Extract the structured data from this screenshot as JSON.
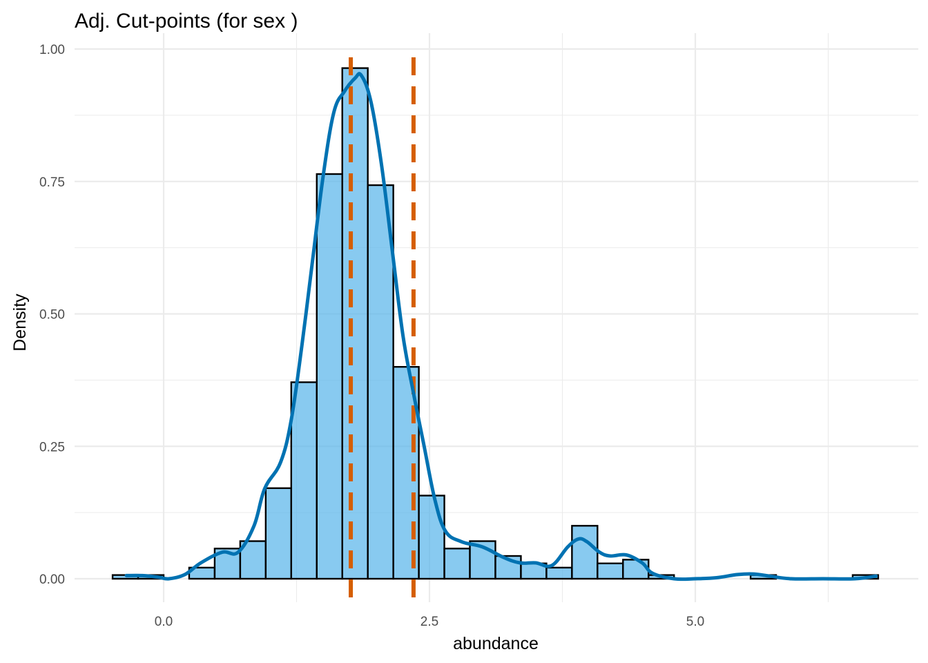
{
  "chart_data": {
    "type": "bar",
    "title": "Adj. Cut-points (for sex )",
    "xlabel": "abundance",
    "ylabel": "Density",
    "xlim": [
      -0.85,
      7.0
    ],
    "ylim": [
      -0.04,
      1.03
    ],
    "x_ticks": [
      {
        "value": 0.0,
        "label": "0.0"
      },
      {
        "value": 2.5,
        "label": "2.5"
      },
      {
        "value": 5.0,
        "label": "5.0"
      }
    ],
    "y_ticks": [
      {
        "value": 0.0,
        "label": "0.00"
      },
      {
        "value": 0.25,
        "label": "0.25"
      },
      {
        "value": 0.5,
        "label": "0.50"
      },
      {
        "value": 0.75,
        "label": "0.75"
      },
      {
        "value": 1.0,
        "label": "1.00"
      }
    ],
    "grid": true,
    "colors": {
      "histogram_fill": "#56B4E9",
      "histogram_edge": "#000000",
      "density_line": "#0072B2",
      "cut_line": "#D55E00",
      "grid": "#ebebeb"
    },
    "histogram": {
      "bin_width": 0.24,
      "bins": [
        {
          "x0": -0.48,
          "x1": -0.24,
          "density": 0.007
        },
        {
          "x0": -0.24,
          "x1": 0.0,
          "density": 0.007
        },
        {
          "x0": 0.0,
          "x1": 0.24,
          "density": 0.0
        },
        {
          "x0": 0.24,
          "x1": 0.48,
          "density": 0.021
        },
        {
          "x0": 0.48,
          "x1": 0.72,
          "density": 0.057
        },
        {
          "x0": 0.72,
          "x1": 0.96,
          "density": 0.071
        },
        {
          "x0": 0.96,
          "x1": 1.2,
          "density": 0.171
        },
        {
          "x0": 1.2,
          "x1": 1.44,
          "density": 0.371
        },
        {
          "x0": 1.44,
          "x1": 1.68,
          "density": 0.764
        },
        {
          "x0": 1.68,
          "x1": 1.92,
          "density": 0.964
        },
        {
          "x0": 1.92,
          "x1": 2.16,
          "density": 0.743
        },
        {
          "x0": 2.16,
          "x1": 2.4,
          "density": 0.4
        },
        {
          "x0": 2.4,
          "x1": 2.64,
          "density": 0.157
        },
        {
          "x0": 2.64,
          "x1": 2.88,
          "density": 0.057
        },
        {
          "x0": 2.88,
          "x1": 3.12,
          "density": 0.071
        },
        {
          "x0": 3.12,
          "x1": 3.36,
          "density": 0.043
        },
        {
          "x0": 3.36,
          "x1": 3.6,
          "density": 0.029
        },
        {
          "x0": 3.6,
          "x1": 3.84,
          "density": 0.021
        },
        {
          "x0": 3.84,
          "x1": 4.08,
          "density": 0.1
        },
        {
          "x0": 4.08,
          "x1": 4.32,
          "density": 0.029
        },
        {
          "x0": 4.32,
          "x1": 4.56,
          "density": 0.036
        },
        {
          "x0": 4.56,
          "x1": 4.8,
          "density": 0.007
        },
        {
          "x0": 4.8,
          "x1": 5.04,
          "density": 0.0
        },
        {
          "x0": 5.04,
          "x1": 5.28,
          "density": 0.0
        },
        {
          "x0": 5.28,
          "x1": 5.52,
          "density": 0.0
        },
        {
          "x0": 5.52,
          "x1": 5.76,
          "density": 0.007
        },
        {
          "x0": 5.76,
          "x1": 6.0,
          "density": 0.0
        },
        {
          "x0": 6.0,
          "x1": 6.24,
          "density": 0.0
        },
        {
          "x0": 6.24,
          "x1": 6.48,
          "density": 0.0
        },
        {
          "x0": 6.48,
          "x1": 6.72,
          "density": 0.007
        }
      ]
    },
    "density_curve": {
      "x": [
        -0.35,
        -0.2,
        -0.05,
        0.05,
        0.2,
        0.35,
        0.55,
        0.7,
        0.85,
        0.95,
        1.1,
        1.2,
        1.3,
        1.4,
        1.5,
        1.6,
        1.7,
        1.8,
        1.86,
        1.95,
        2.05,
        2.15,
        2.25,
        2.35,
        2.45,
        2.55,
        2.65,
        2.8,
        3.0,
        3.2,
        3.35,
        3.5,
        3.65,
        3.8,
        3.9,
        3.98,
        4.1,
        4.2,
        4.35,
        4.5,
        4.6,
        4.8,
        5.0,
        5.2,
        5.4,
        5.55,
        5.7,
        5.9,
        6.2,
        6.5,
        6.7
      ],
      "y": [
        0.006,
        0.006,
        0.003,
        0.0,
        0.008,
        0.03,
        0.05,
        0.05,
        0.1,
        0.17,
        0.22,
        0.3,
        0.44,
        0.6,
        0.76,
        0.88,
        0.92,
        0.945,
        0.95,
        0.9,
        0.78,
        0.62,
        0.46,
        0.35,
        0.25,
        0.15,
        0.09,
        0.07,
        0.06,
        0.04,
        0.03,
        0.03,
        0.025,
        0.06,
        0.075,
        0.07,
        0.05,
        0.043,
        0.045,
        0.03,
        0.01,
        0.0,
        0.0,
        0.002,
        0.008,
        0.009,
        0.005,
        0.0,
        0.0,
        0.0,
        0.005
      ]
    },
    "cut_points": [
      1.76,
      2.35
    ]
  }
}
